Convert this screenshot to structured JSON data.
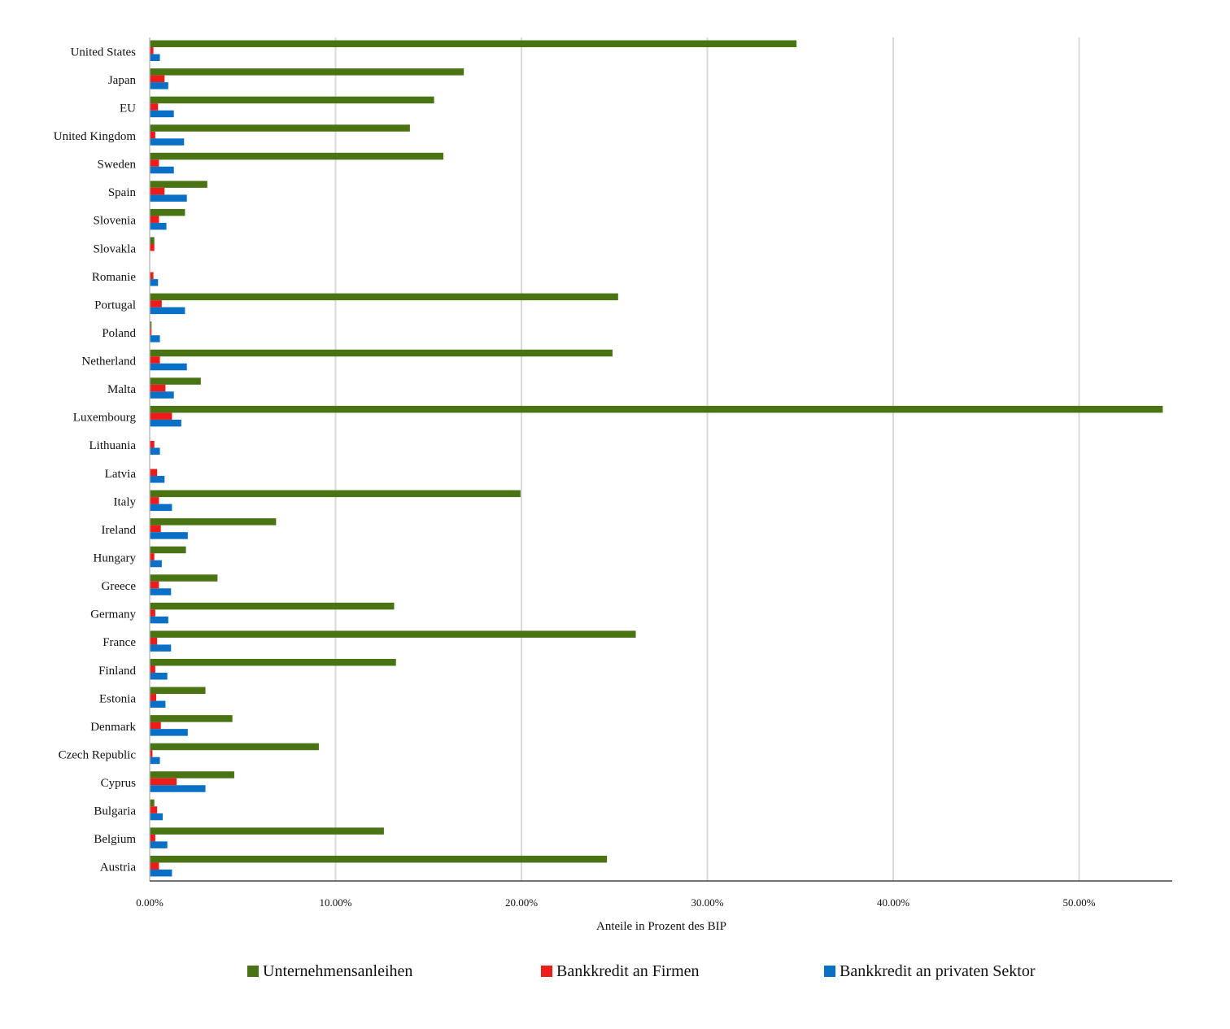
{
  "chart_data": {
    "type": "bar",
    "orientation": "horizontal",
    "title": "",
    "xlabel": "Anteile in Prozent des BIP",
    "ylabel": "",
    "xlim": [
      0,
      55
    ],
    "x_ticks": [
      0,
      10,
      20,
      30,
      40,
      50
    ],
    "x_tick_labels": [
      "0.00%",
      "10.00%",
      "20.00%",
      "30.00%",
      "40.00%",
      "50.00%"
    ],
    "grid": "vertical",
    "legend_position": "bottom",
    "categories": [
      "United States",
      "Japan",
      "EU",
      "United Kingdom",
      "Sweden",
      "Spain",
      "Slovenia",
      "Slovakla",
      "Romanie",
      "Portugal",
      "Poland",
      "Netherland",
      "Malta",
      "Luxembourg",
      "Lithuania",
      "Latvia",
      "Italy",
      "Ireland",
      "Hungary",
      "Greece",
      "Germany",
      "France",
      "Finland",
      "Estonia",
      "Denmark",
      "Czech Republic",
      "Cyprus",
      "Bulgaria",
      "Belgium",
      "Austria"
    ],
    "series": [
      {
        "name": "Unternehmensanleihen",
        "color": "#4a7314",
        "values": [
          34.8,
          16.9,
          15.3,
          14.0,
          15.8,
          3.1,
          1.9,
          0.25,
          0.0,
          25.2,
          0.1,
          24.9,
          2.75,
          54.5,
          0.0,
          0.0,
          19.95,
          6.8,
          1.95,
          3.65,
          13.15,
          26.15,
          13.25,
          3.0,
          4.45,
          9.1,
          4.55,
          0.25,
          12.6,
          24.6
        ]
      },
      {
        "name": "Bankkredit an Firmen",
        "color": "#ee1b1b",
        "values": [
          0.2,
          0.8,
          0.45,
          0.3,
          0.5,
          0.8,
          0.5,
          0.25,
          0.2,
          0.65,
          0.1,
          0.55,
          0.85,
          1.2,
          0.25,
          0.4,
          0.5,
          0.6,
          0.25,
          0.5,
          0.3,
          0.4,
          0.3,
          0.35,
          0.6,
          0.15,
          1.45,
          0.4,
          0.3,
          0.5
        ]
      },
      {
        "name": "Bankkredit an privaten Sektor",
        "color": "#0a70c6",
        "values": [
          0.55,
          1.0,
          1.3,
          1.85,
          1.3,
          2.0,
          0.9,
          0.0,
          0.45,
          1.9,
          0.55,
          2.0,
          1.3,
          1.7,
          0.55,
          0.8,
          1.2,
          2.05,
          0.65,
          1.15,
          1.0,
          1.15,
          0.95,
          0.85,
          2.05,
          0.55,
          3.0,
          0.7,
          0.95,
          1.2
        ]
      }
    ]
  }
}
